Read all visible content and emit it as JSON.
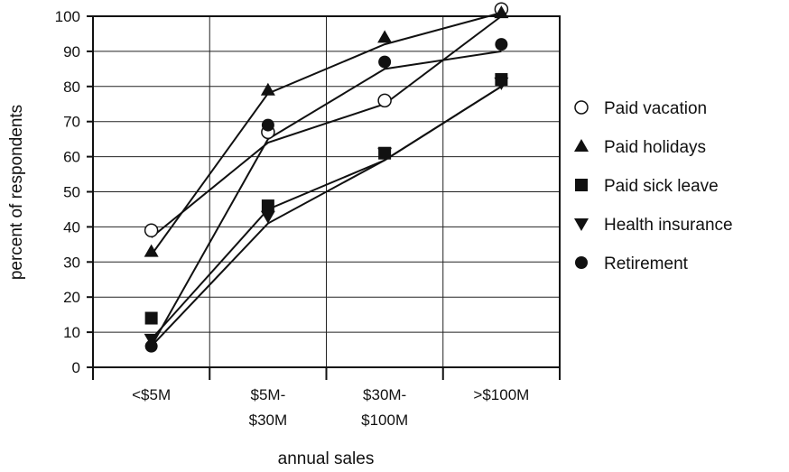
{
  "chart_data": {
    "type": "line",
    "categories": [
      "<$5M",
      "$5M-\n$30M",
      "$30M-\n$100M",
      ">$100M"
    ],
    "xlabel": "annual sales",
    "ylabel": "percent of respondents",
    "ylim": [
      0,
      100
    ],
    "y_ticks": [
      0,
      10,
      20,
      30,
      40,
      50,
      60,
      70,
      80,
      90,
      100
    ],
    "grid": true,
    "legend_position": "right",
    "series": [
      {
        "name": "Paid vacation",
        "marker": "circle-open",
        "values": [
          39,
          67,
          76,
          102
        ],
        "fit": [
          37,
          64,
          75,
          100
        ]
      },
      {
        "name": "Paid holidays",
        "marker": "triangle-up",
        "values": [
          33,
          79,
          94,
          101
        ],
        "fit": [
          32,
          78,
          92,
          101
        ]
      },
      {
        "name": "Paid sick leave",
        "marker": "square",
        "values": [
          14,
          46,
          61,
          82
        ],
        "fit": [
          8,
          45,
          59,
          80
        ]
      },
      {
        "name": "Health insurance",
        "marker": "triangle-down",
        "values": [
          8,
          43,
          61,
          81
        ],
        "fit": [
          6,
          41,
          59,
          80
        ]
      },
      {
        "name": "Retirement",
        "marker": "circle-filled",
        "values": [
          6,
          69,
          87,
          92
        ],
        "fit": [
          6,
          65,
          85,
          90
        ]
      }
    ]
  }
}
